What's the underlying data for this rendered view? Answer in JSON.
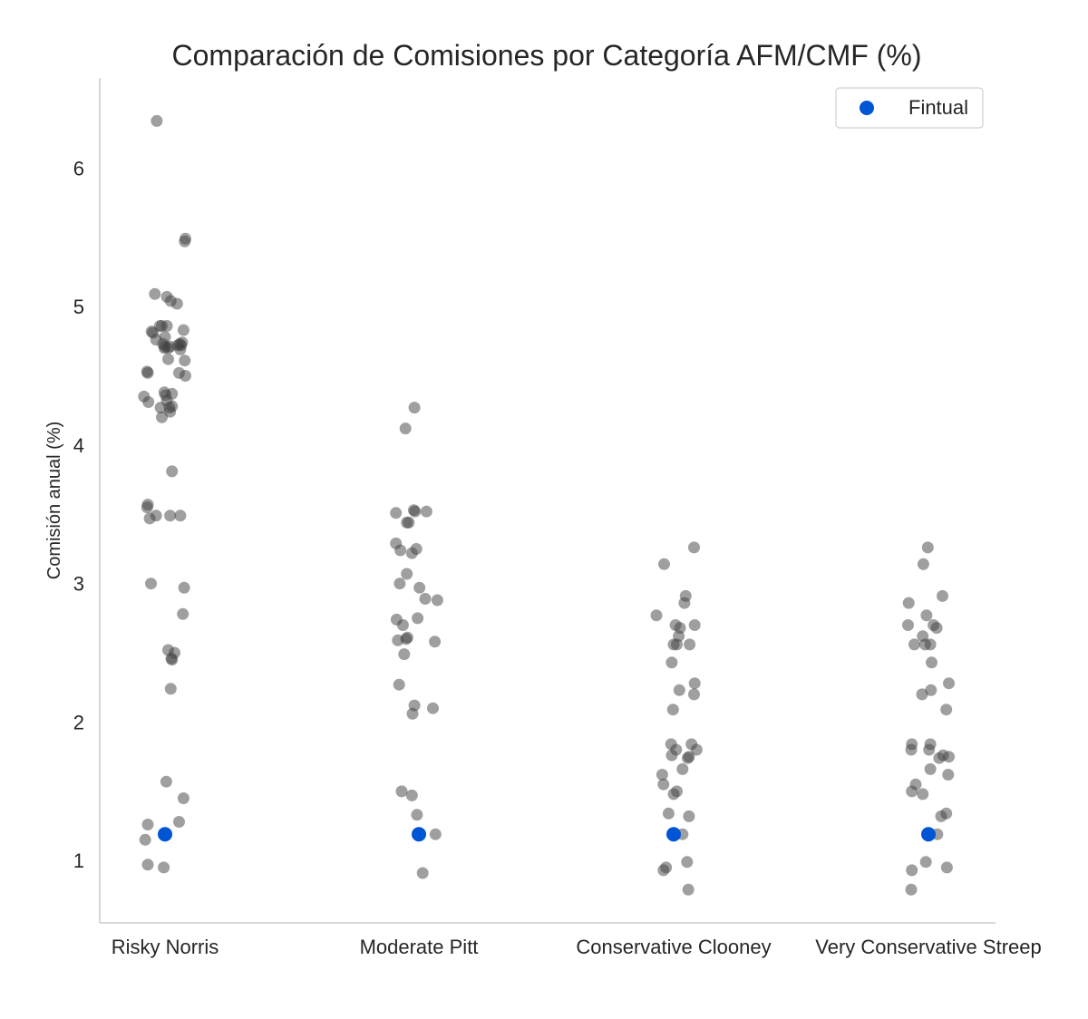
{
  "chart_data": {
    "type": "scatter",
    "title": "Comparación de Comisiones por Categoría AFM/CMF (%)",
    "ylabel": "Comisión anual (%)",
    "xlabel": "",
    "ylim": [
      0.55,
      6.65
    ],
    "yticks": [
      1,
      2,
      3,
      4,
      5,
      6
    ],
    "grid": false,
    "legend": {
      "placement": "top-right",
      "entries": [
        "Fintual"
      ]
    },
    "colors": {
      "points": "#404040",
      "highlight": "#0055d4",
      "axis": "#cccccc"
    },
    "categories": [
      "Risky Norris",
      "Moderate Pitt",
      "Conservative Clooney",
      "Very Conservative Streep"
    ],
    "series": [
      {
        "category": "Risky Norris",
        "values": [
          6.34,
          5.49,
          5.47,
          5.09,
          5.07,
          5.04,
          5.02,
          4.86,
          4.86,
          4.86,
          4.83,
          4.82,
          4.81,
          4.78,
          4.76,
          4.74,
          4.73,
          4.73,
          4.72,
          4.72,
          4.71,
          4.71,
          4.7,
          4.7,
          4.69,
          4.62,
          4.61,
          4.53,
          4.52,
          4.52,
          4.5,
          4.38,
          4.37,
          4.36,
          4.35,
          4.32,
          4.31,
          4.28,
          4.27,
          4.27,
          4.24,
          4.2,
          3.81,
          3.57,
          3.55,
          3.49,
          3.49,
          3.49,
          3.47,
          3.0,
          2.97,
          2.78,
          2.52,
          2.5,
          2.46,
          2.45,
          2.24,
          1.57,
          1.45,
          1.28,
          1.26,
          1.15,
          0.97,
          0.95
        ],
        "jitter": [
          -0.13,
          0.32,
          0.31,
          -0.16,
          0.03,
          0.09,
          0.19,
          -0.08,
          -0.05,
          0.03,
          0.29,
          -0.21,
          -0.19,
          0.0,
          -0.14,
          0.27,
          0.23,
          -0.03,
          0.2,
          0.25,
          0.0,
          0.08,
          0.05,
          -0.01,
          0.24,
          0.05,
          0.31,
          -0.28,
          -0.27,
          0.22,
          0.32,
          -0.01,
          0.11,
          0.01,
          -0.33,
          0.03,
          -0.26,
          0.11,
          -0.07,
          0.07,
          0.08,
          -0.05,
          0.11,
          -0.27,
          -0.28,
          -0.14,
          0.08,
          0.24,
          -0.24,
          -0.22,
          0.3,
          0.28,
          0.05,
          0.15,
          0.1,
          0.11,
          0.09,
          0.02,
          0.29,
          0.22,
          -0.27,
          -0.31,
          -0.27,
          -0.02
        ]
      },
      {
        "category": "Moderate Pitt",
        "values": [
          4.27,
          4.12,
          3.53,
          3.52,
          3.52,
          3.51,
          3.44,
          3.44,
          3.29,
          3.25,
          3.24,
          3.22,
          3.07,
          3.0,
          2.97,
          2.89,
          2.88,
          2.75,
          2.74,
          2.7,
          2.61,
          2.6,
          2.59,
          2.58,
          2.49,
          2.27,
          2.12,
          2.1,
          2.06,
          1.5,
          1.47,
          1.33,
          1.19,
          0.91
        ],
        "jitter": [
          -0.07,
          -0.21,
          -0.08,
          -0.06,
          0.12,
          -0.36,
          -0.16,
          -0.19,
          -0.36,
          -0.04,
          -0.29,
          -0.11,
          -0.19,
          -0.3,
          0.01,
          0.1,
          0.29,
          -0.02,
          -0.35,
          -0.25,
          -0.18,
          -0.2,
          -0.33,
          0.25,
          -0.23,
          -0.31,
          -0.07,
          0.22,
          -0.1,
          -0.27,
          -0.11,
          -0.03,
          0.26,
          0.06
        ]
      },
      {
        "category": "Conservative Clooney",
        "values": [
          3.26,
          3.14,
          2.91,
          2.86,
          2.77,
          2.7,
          2.7,
          2.68,
          2.62,
          2.56,
          2.56,
          2.56,
          2.43,
          2.28,
          2.23,
          2.2,
          2.09,
          1.84,
          1.84,
          1.8,
          1.8,
          1.76,
          1.75,
          1.74,
          1.66,
          1.62,
          1.55,
          1.5,
          1.48,
          1.34,
          1.32,
          1.19,
          0.99,
          0.95,
          0.93,
          0.79
        ],
        "jitter": [
          0.32,
          -0.15,
          0.19,
          0.17,
          -0.27,
          0.03,
          0.33,
          0.1,
          0.08,
          0.0,
          0.05,
          0.25,
          -0.03,
          0.33,
          0.09,
          0.32,
          -0.01,
          -0.04,
          0.28,
          0.04,
          0.36,
          -0.03,
          0.24,
          0.22,
          0.14,
          -0.18,
          -0.16,
          0.05,
          0.0,
          -0.08,
          0.24,
          0.14,
          0.21,
          -0.12,
          -0.16,
          0.23
        ]
      },
      {
        "category": "Very Conservative Streep",
        "values": [
          3.26,
          3.14,
          2.91,
          2.86,
          2.77,
          2.7,
          2.7,
          2.68,
          2.62,
          2.56,
          2.56,
          2.56,
          2.43,
          2.28,
          2.23,
          2.2,
          2.09,
          1.84,
          1.84,
          1.8,
          1.8,
          1.76,
          1.75,
          1.74,
          1.66,
          1.62,
          1.55,
          1.5,
          1.48,
          1.34,
          1.32,
          1.19,
          0.99,
          0.95,
          0.93,
          0.79
        ],
        "jitter": [
          -0.01,
          -0.08,
          0.22,
          -0.31,
          -0.03,
          -0.32,
          0.08,
          0.13,
          -0.09,
          -0.22,
          -0.05,
          0.03,
          0.05,
          0.32,
          0.04,
          -0.1,
          0.28,
          -0.26,
          0.03,
          -0.27,
          0.01,
          0.23,
          0.32,
          0.17,
          0.03,
          0.31,
          -0.2,
          -0.26,
          -0.09,
          0.28,
          0.2,
          0.14,
          -0.04,
          0.29,
          -0.26,
          -0.27
        ]
      }
    ],
    "highlight": {
      "name": "Fintual",
      "values": [
        1.19,
        1.19,
        1.19,
        1.19
      ]
    }
  }
}
